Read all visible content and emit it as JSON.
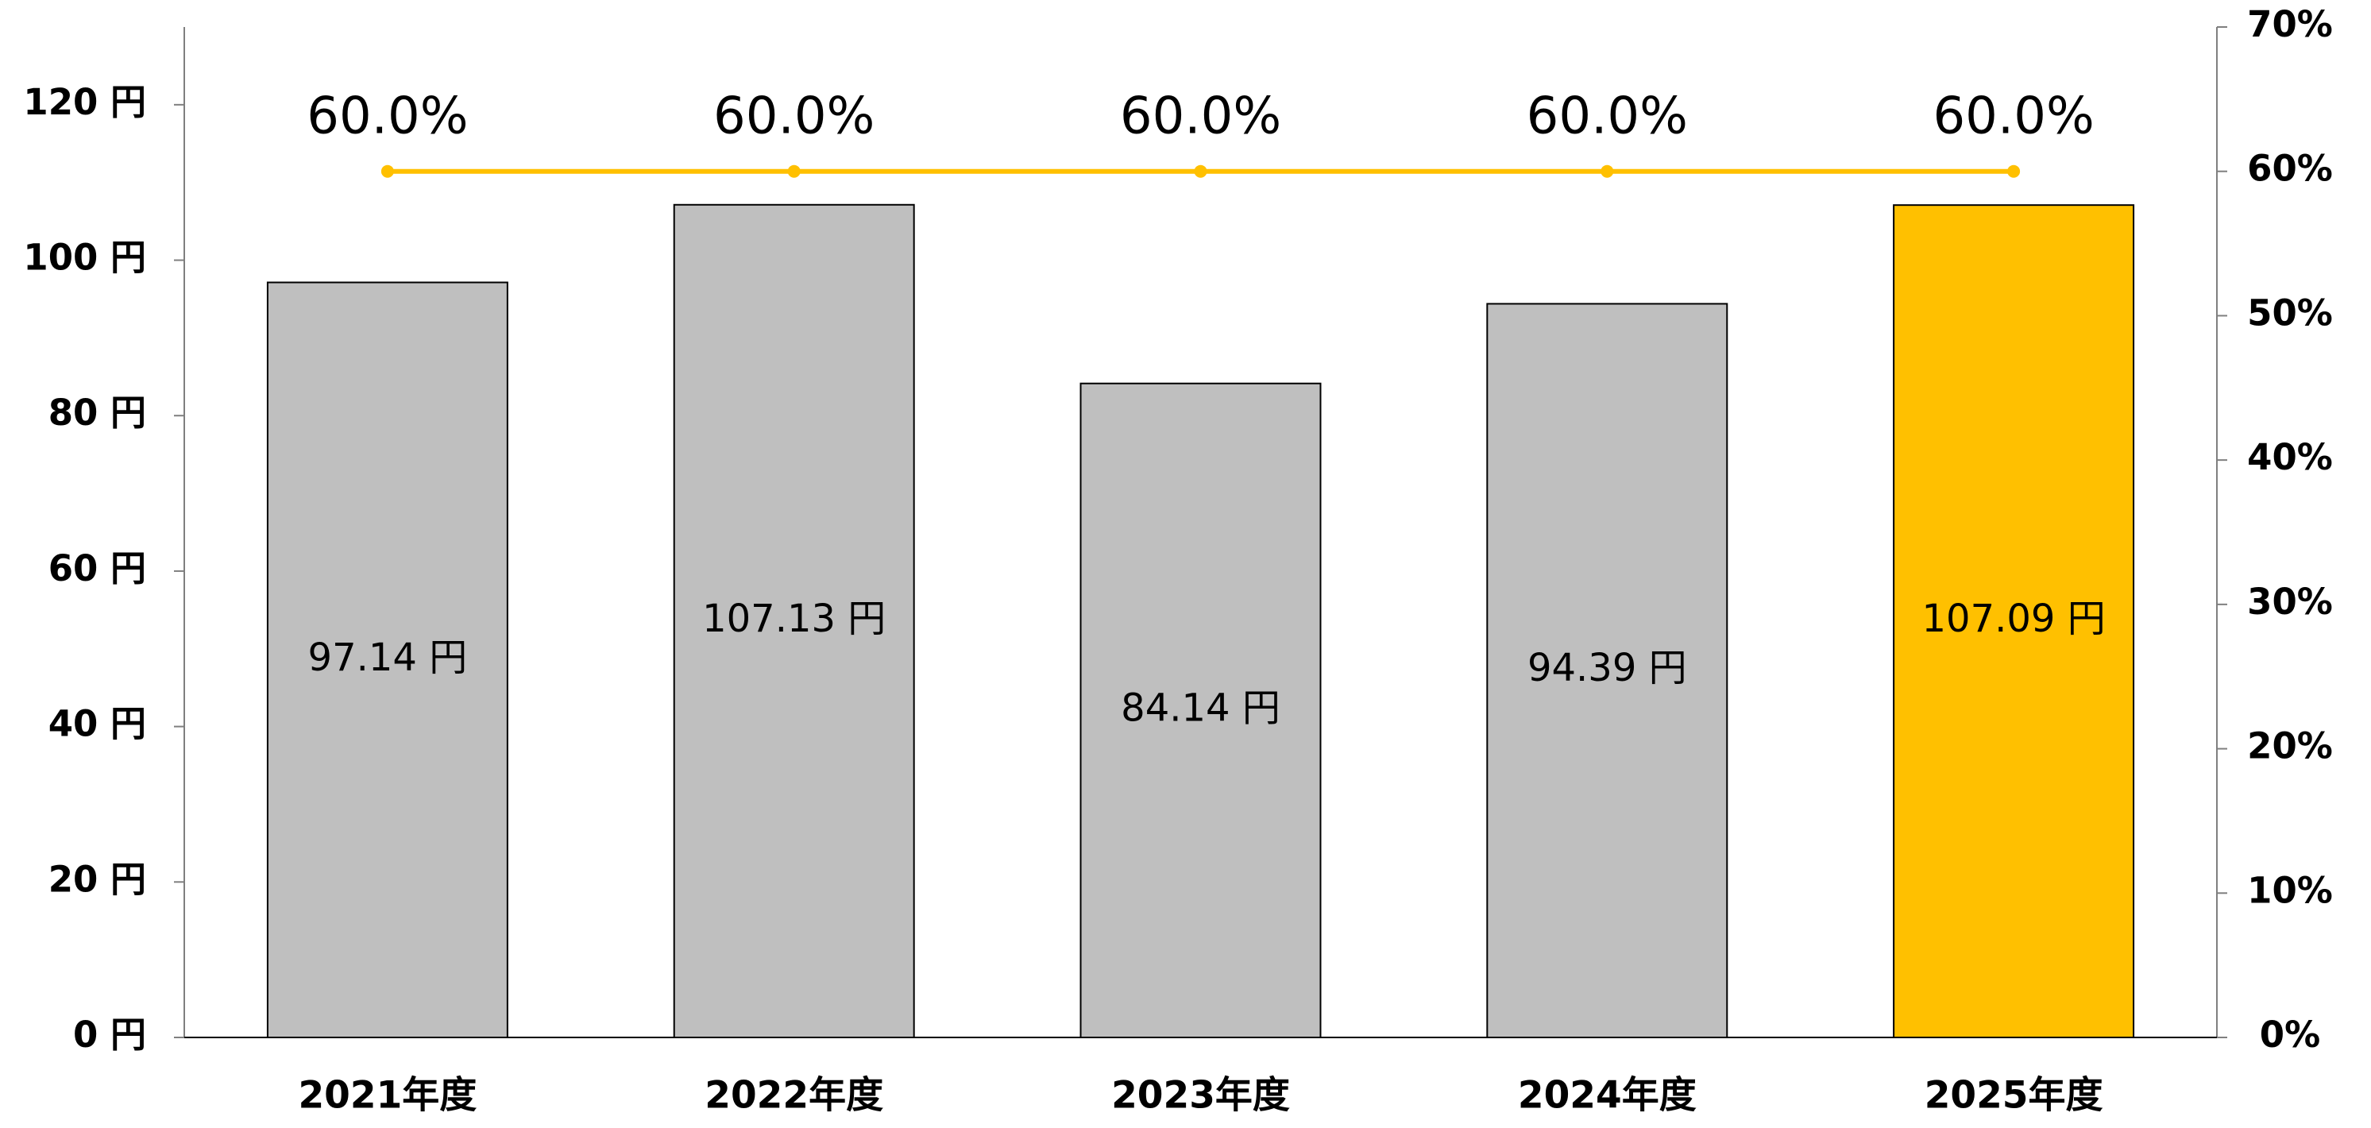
{
  "chart_data": {
    "type": "bar",
    "categories": [
      "2021年度",
      "2022年度",
      "2023年度",
      "2024年度",
      "2025年度"
    ],
    "series": [
      {
        "type": "bar",
        "colors": [
          "#bfbfbf",
          "#bfbfbf",
          "#bfbfbf",
          "#bfbfbf",
          "#ffc000"
        ],
        "values": [
          97.14,
          107.13,
          84.14,
          94.39,
          107.09
        ],
        "value_labels": [
          "97.14 円",
          "107.13 円",
          "84.14 円",
          "94.39 円",
          "107.09 円"
        ]
      },
      {
        "type": "line",
        "axis": "y2",
        "color": "#ffc000",
        "values": [
          60,
          60,
          60,
          60,
          60
        ],
        "value_labels": [
          "60.0%",
          "60.0%",
          "60.0%",
          "60.0%",
          "60.0%"
        ]
      }
    ],
    "ylim": [
      0,
      130
    ],
    "yticks": [
      {
        "value": 0,
        "label": "0 円"
      },
      {
        "value": 20,
        "label": "20 円"
      },
      {
        "value": 40,
        "label": "40 円"
      },
      {
        "value": 60,
        "label": "60 円"
      },
      {
        "value": 80,
        "label": "80 円"
      },
      {
        "value": 100,
        "label": "100 円"
      },
      {
        "value": 120,
        "label": "120 円"
      }
    ],
    "y2lim": [
      0,
      70
    ],
    "y2ticks": [
      {
        "value": 0,
        "label": "0%"
      },
      {
        "value": 10,
        "label": "10%"
      },
      {
        "value": 20,
        "label": "20%"
      },
      {
        "value": 30,
        "label": "30%"
      },
      {
        "value": 40,
        "label": "40%"
      },
      {
        "value": 50,
        "label": "50%"
      },
      {
        "value": 60,
        "label": "60%"
      },
      {
        "value": 70,
        "label": "70%"
      }
    ],
    "grid": false
  }
}
